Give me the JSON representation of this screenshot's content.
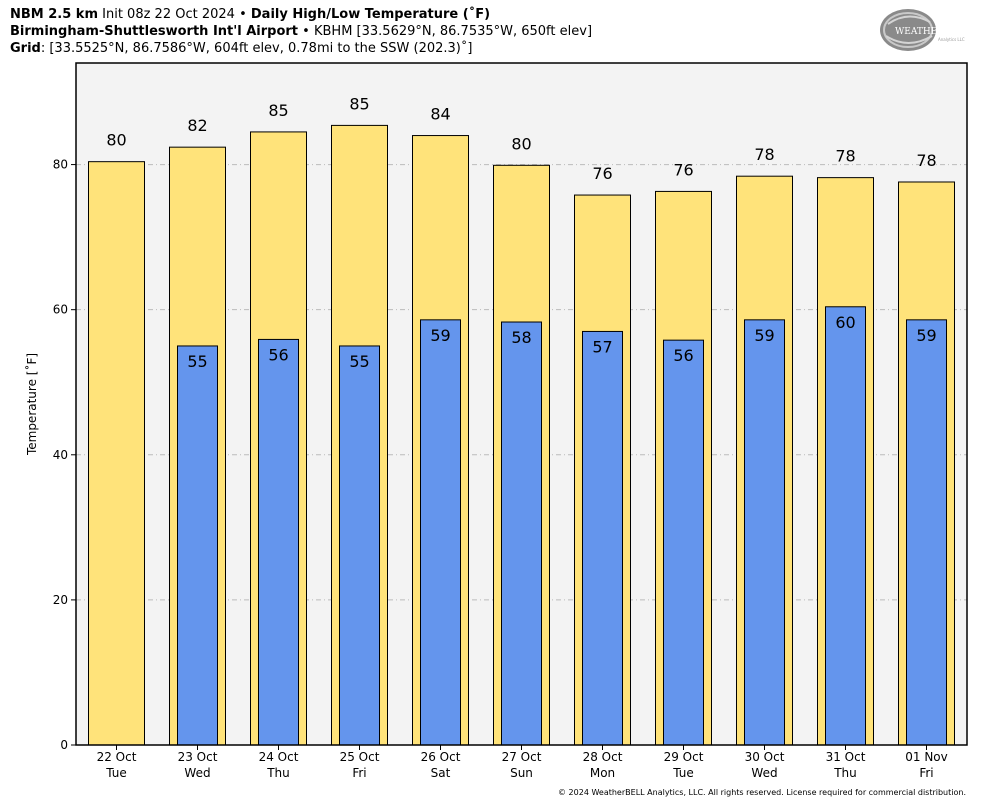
{
  "header": {
    "line1": {
      "model": "NBM 2.5 km",
      "init": "Init 08z 22 Oct 2024",
      "sep": "•",
      "product": "Daily High/Low Temperature (˚F)"
    },
    "line2": {
      "station": "Birmingham-Shuttlesworth Int'l Airport",
      "sep": "•",
      "details": "KBHM [33.5629°N, 86.7535°W, 650ft elev]"
    },
    "line3": {
      "label": "Grid",
      "details": ": [33.5525°N, 86.7586°W, 604ft elev, 0.78mi to the SSW (202.3)˚]"
    }
  },
  "logo": {
    "text_main": "WEATHERBELL",
    "text_sub": "Analytics LLC"
  },
  "copyright": "© 2024 WeatherBELL Analytics, LLC. All rights reserved. License required for commercial distribution.",
  "colors": {
    "high": "#FFE37A",
    "low": "#6495ED",
    "panel": "#F3F3F3",
    "grid": "#BBBBBB"
  },
  "chart_data": {
    "type": "bar",
    "title": "Daily High/Low Temperature (˚F)",
    "xlabel": "",
    "ylabel": "Temperature [˚F]",
    "ylim": [
      0,
      94
    ],
    "yticks": [
      0,
      20,
      40,
      60,
      80
    ],
    "grid": true,
    "categories": [
      [
        "22 Oct",
        "Tue"
      ],
      [
        "23 Oct",
        "Wed"
      ],
      [
        "24 Oct",
        "Thu"
      ],
      [
        "25 Oct",
        "Fri"
      ],
      [
        "26 Oct",
        "Sat"
      ],
      [
        "27 Oct",
        "Sun"
      ],
      [
        "28 Oct",
        "Mon"
      ],
      [
        "29 Oct",
        "Tue"
      ],
      [
        "30 Oct",
        "Wed"
      ],
      [
        "31 Oct",
        "Thu"
      ],
      [
        "01 Nov",
        "Fri"
      ]
    ],
    "series": [
      {
        "key": "high",
        "values": [
          80.4,
          82.4,
          84.5,
          85.4,
          84.0,
          79.9,
          75.8,
          76.3,
          78.4,
          78.2,
          77.6
        ],
        "labels": [
          "80",
          "82",
          "85",
          "85",
          "84",
          "80",
          "76",
          "76",
          "78",
          "78",
          "78"
        ]
      },
      {
        "key": "low",
        "values": [
          null,
          55.0,
          55.9,
          55.0,
          58.6,
          58.3,
          57.0,
          55.8,
          58.6,
          60.4,
          58.6
        ],
        "labels": [
          null,
          "55",
          "56",
          "55",
          "59",
          "58",
          "57",
          "56",
          "59",
          "60",
          "59"
        ]
      }
    ]
  }
}
